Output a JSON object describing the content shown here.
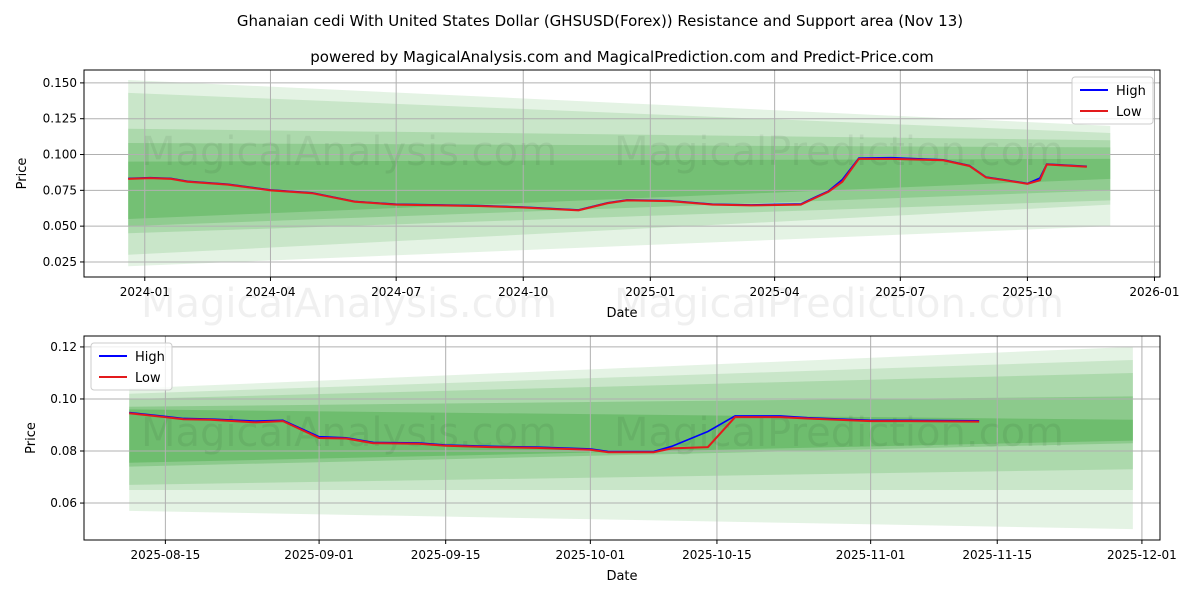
{
  "title": "Ghanaian cedi With United States Dollar (GHSUSD(Forex)) Resistance and Support area (Nov 13)",
  "subtitle": "powered by MagicalAnalysis.com and MagicalPrediction.com and Predict-Price.com",
  "watermarks": [
    "MagicalAnalysis.com",
    "MagicalPrediction.com"
  ],
  "colors": {
    "high": "#0000ff",
    "low": "#e31a1c",
    "band": "#2ca02c",
    "grid": "#b0b0b0"
  },
  "chart_data": [
    {
      "type": "line",
      "xlabel": "Date",
      "ylabel": "Price",
      "legend": {
        "position": "top-right",
        "entries": [
          "High",
          "Low"
        ]
      },
      "grid": true,
      "xlim": [
        "2023-11-18",
        "2026-01-05"
      ],
      "ylim": [
        0.0145,
        0.159
      ],
      "xticks": [
        "2024-01",
        "2024-04",
        "2024-07",
        "2024-10",
        "2025-01",
        "2025-04",
        "2025-07",
        "2025-10",
        "2026-01"
      ],
      "yticks": [
        0.025,
        0.05,
        0.075,
        0.1,
        0.125,
        0.15
      ],
      "ytick_labels": [
        "0.025",
        "0.050",
        "0.075",
        "0.100",
        "0.125",
        "0.150"
      ],
      "bands": {
        "start": "2023-12-20",
        "end": "2025-11-30",
        "levels": [
          {
            "start": [
              0.022,
              0.152
            ],
            "end": [
              0.05,
              0.12
            ],
            "opacity": 0.13
          },
          {
            "start": [
              0.03,
              0.143
            ],
            "end": [
              0.065,
              0.115
            ],
            "opacity": 0.15
          },
          {
            "start": [
              0.045,
              0.118
            ],
            "end": [
              0.068,
              0.11
            ],
            "opacity": 0.18
          },
          {
            "start": [
              0.05,
              0.108
            ],
            "end": [
              0.075,
              0.105
            ],
            "opacity": 0.22
          },
          {
            "start": [
              0.055,
              0.095
            ],
            "end": [
              0.083,
              0.097
            ],
            "opacity": 0.28
          }
        ]
      },
      "series": [
        {
          "name": "Low",
          "points": [
            [
              "2023-12-20",
              0.083
            ],
            [
              "2024-01-05",
              0.0835
            ],
            [
              "2024-01-20",
              0.083
            ],
            [
              "2024-02-01",
              0.081
            ],
            [
              "2024-03-01",
              0.079
            ],
            [
              "2024-04-01",
              0.075
            ],
            [
              "2024-05-01",
              0.073
            ],
            [
              "2024-06-01",
              0.067
            ],
            [
              "2024-07-01",
              0.065
            ],
            [
              "2024-08-01",
              0.0645
            ],
            [
              "2024-09-01",
              0.064
            ],
            [
              "2024-10-01",
              0.063
            ],
            [
              "2024-11-10",
              0.061
            ],
            [
              "2024-12-01",
              0.066
            ],
            [
              "2024-12-15",
              0.068
            ],
            [
              "2025-01-15",
              0.0675
            ],
            [
              "2025-02-15",
              0.065
            ],
            [
              "2025-03-15",
              0.0645
            ],
            [
              "2025-04-20",
              0.065
            ],
            [
              "2025-05-01",
              0.07
            ],
            [
              "2025-05-10",
              0.074
            ],
            [
              "2025-05-20",
              0.081
            ],
            [
              "2025-06-01",
              0.097
            ],
            [
              "2025-06-25",
              0.097
            ],
            [
              "2025-08-01",
              0.096
            ],
            [
              "2025-08-20",
              0.092
            ],
            [
              "2025-09-01",
              0.084
            ],
            [
              "2025-09-15",
              0.082
            ],
            [
              "2025-10-01",
              0.0795
            ],
            [
              "2025-10-10",
              0.082
            ],
            [
              "2025-10-15",
              0.093
            ],
            [
              "2025-11-13",
              0.0915
            ]
          ]
        },
        {
          "name": "High",
          "points": [
            [
              "2023-12-20",
              0.0833
            ],
            [
              "2024-01-05",
              0.0838
            ],
            [
              "2024-01-20",
              0.0833
            ],
            [
              "2024-02-01",
              0.0813
            ],
            [
              "2024-03-01",
              0.0793
            ],
            [
              "2024-04-01",
              0.0753
            ],
            [
              "2024-05-01",
              0.0733
            ],
            [
              "2024-06-01",
              0.0673
            ],
            [
              "2024-07-01",
              0.0653
            ],
            [
              "2024-08-01",
              0.0648
            ],
            [
              "2024-09-01",
              0.0643
            ],
            [
              "2024-10-01",
              0.0633
            ],
            [
              "2024-11-10",
              0.0613
            ],
            [
              "2024-12-01",
              0.0663
            ],
            [
              "2024-12-15",
              0.0683
            ],
            [
              "2025-01-15",
              0.0678
            ],
            [
              "2025-02-15",
              0.0653
            ],
            [
              "2025-03-15",
              0.0648
            ],
            [
              "2025-04-20",
              0.0655
            ],
            [
              "2025-05-01",
              0.0705
            ],
            [
              "2025-05-10",
              0.0745
            ],
            [
              "2025-05-20",
              0.0825
            ],
            [
              "2025-06-01",
              0.0975
            ],
            [
              "2025-06-25",
              0.0978
            ],
            [
              "2025-08-01",
              0.0963
            ],
            [
              "2025-08-20",
              0.0923
            ],
            [
              "2025-09-01",
              0.0843
            ],
            [
              "2025-09-15",
              0.0823
            ],
            [
              "2025-10-01",
              0.0798
            ],
            [
              "2025-10-10",
              0.0835
            ],
            [
              "2025-10-15",
              0.0933
            ],
            [
              "2025-11-13",
              0.0918
            ]
          ]
        }
      ]
    },
    {
      "type": "line",
      "xlabel": "Date",
      "ylabel": "Price",
      "legend": {
        "position": "top-left",
        "entries": [
          "High",
          "Low"
        ]
      },
      "grid": true,
      "xlim": [
        "2025-08-06",
        "2025-12-03"
      ],
      "ylim": [
        0.0458,
        0.1242
      ],
      "xticks": [
        "2025-08-15",
        "2025-09-01",
        "2025-09-15",
        "2025-10-01",
        "2025-10-15",
        "2025-11-01",
        "2025-11-15",
        "2025-12-01"
      ],
      "yticks": [
        0.06,
        0.08,
        0.1,
        0.12
      ],
      "ytick_labels": [
        "0.06",
        "0.08",
        "0.10",
        "0.12"
      ],
      "bands": {
        "start": "2025-08-11",
        "end": "2025-11-30",
        "levels": [
          {
            "start": [
              0.057,
              0.104
            ],
            "end": [
              0.05,
              0.12
            ],
            "opacity": 0.13
          },
          {
            "start": [
              0.065,
              0.102
            ],
            "end": [
              0.065,
              0.115
            ],
            "opacity": 0.15
          },
          {
            "start": [
              0.067,
              0.1
            ],
            "end": [
              0.073,
              0.11
            ],
            "opacity": 0.18
          },
          {
            "start": [
              0.074,
              0.097
            ],
            "end": [
              0.083,
              0.101
            ],
            "opacity": 0.25
          },
          {
            "start": [
              0.0755,
              0.096
            ],
            "end": [
              0.084,
              0.092
            ],
            "opacity": 0.3
          }
        ]
      },
      "series": [
        {
          "name": "Low",
          "points": [
            [
              "2025-08-11",
              0.0945
            ],
            [
              "2025-08-15",
              0.093
            ],
            [
              "2025-08-17",
              0.0922
            ],
            [
              "2025-08-20",
              0.092
            ],
            [
              "2025-08-25",
              0.091
            ],
            [
              "2025-08-28",
              0.0915
            ],
            [
              "2025-09-01",
              0.085
            ],
            [
              "2025-09-04",
              0.0848
            ],
            [
              "2025-09-07",
              0.083
            ],
            [
              "2025-09-12",
              0.0828
            ],
            [
              "2025-09-15",
              0.082
            ],
            [
              "2025-09-20",
              0.0815
            ],
            [
              "2025-09-25",
              0.0812
            ],
            [
              "2025-10-01",
              0.0805
            ],
            [
              "2025-10-03",
              0.0795
            ],
            [
              "2025-10-08",
              0.0795
            ],
            [
              "2025-10-10",
              0.081
            ],
            [
              "2025-10-14",
              0.0815
            ],
            [
              "2025-10-17",
              0.093
            ],
            [
              "2025-10-22",
              0.093
            ],
            [
              "2025-10-25",
              0.0925
            ],
            [
              "2025-11-01",
              0.0915
            ],
            [
              "2025-11-05",
              0.0915
            ],
            [
              "2025-11-13",
              0.0913
            ]
          ]
        },
        {
          "name": "High",
          "points": [
            [
              "2025-08-11",
              0.0948
            ],
            [
              "2025-08-15",
              0.0933
            ],
            [
              "2025-08-17",
              0.0925
            ],
            [
              "2025-08-20",
              0.0923
            ],
            [
              "2025-08-25",
              0.0915
            ],
            [
              "2025-08-28",
              0.0918
            ],
            [
              "2025-09-01",
              0.0855
            ],
            [
              "2025-09-04",
              0.0851
            ],
            [
              "2025-09-07",
              0.0833
            ],
            [
              "2025-09-12",
              0.0831
            ],
            [
              "2025-09-15",
              0.0823
            ],
            [
              "2025-09-20",
              0.0818
            ],
            [
              "2025-09-25",
              0.0815
            ],
            [
              "2025-10-01",
              0.0808
            ],
            [
              "2025-10-03",
              0.0798
            ],
            [
              "2025-10-08",
              0.0798
            ],
            [
              "2025-10-10",
              0.0818
            ],
            [
              "2025-10-14",
              0.0875
            ],
            [
              "2025-10-17",
              0.0935
            ],
            [
              "2025-10-22",
              0.0935
            ],
            [
              "2025-10-25",
              0.0928
            ],
            [
              "2025-11-01",
              0.0918
            ],
            [
              "2025-11-05",
              0.0918
            ],
            [
              "2025-11-13",
              0.0916
            ]
          ]
        }
      ]
    }
  ]
}
